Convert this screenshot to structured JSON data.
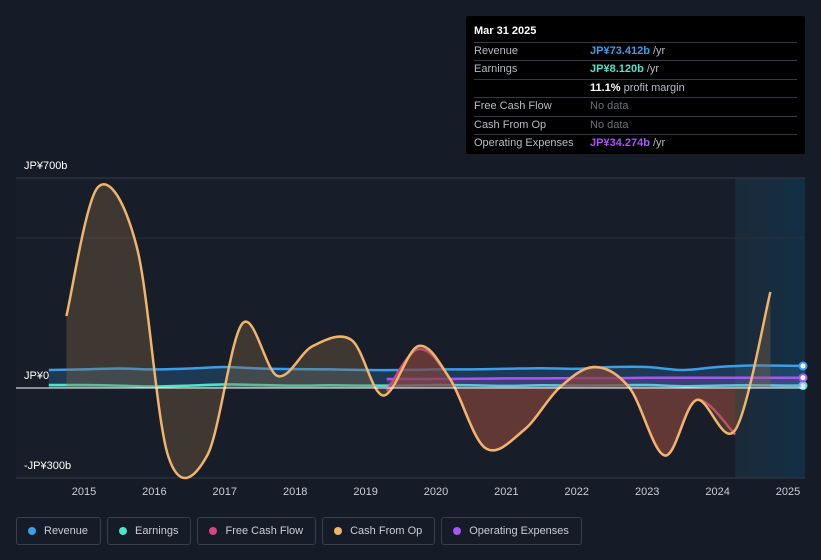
{
  "tooltip": {
    "date": "Mar 31 2025",
    "rows": [
      {
        "label": "Revenue",
        "value": "JP¥73.412b",
        "unit": "/yr",
        "color": "#3b9ee8"
      },
      {
        "label": "Earnings",
        "value": "JP¥8.120b",
        "unit": "/yr",
        "color": "#4fe3c7"
      },
      {
        "label": "",
        "value": "11.1%",
        "unit": "profit margin",
        "color": "#ffffff"
      },
      {
        "label": "Free Cash Flow",
        "value": "No data",
        "unit": "",
        "color": "#6b717b"
      },
      {
        "label": "Cash From Op",
        "value": "No data",
        "unit": "",
        "color": "#6b717b"
      },
      {
        "label": "Operating Expenses",
        "value": "JP¥34.274b",
        "unit": "/yr",
        "color": "#a855f7"
      }
    ]
  },
  "legend": [
    {
      "label": "Revenue",
      "color": "#3b9ee8"
    },
    {
      "label": "Earnings",
      "color": "#4fe3c7"
    },
    {
      "label": "Free Cash Flow",
      "color": "#d6457f"
    },
    {
      "label": "Cash From Op",
      "color": "#f0b46a"
    },
    {
      "label": "Operating Expenses",
      "color": "#a855f7"
    }
  ],
  "chart_data": {
    "type": "line",
    "ylim": [
      -300,
      700
    ],
    "y_tick_labels": [
      "JP¥700b",
      "JP¥0",
      "-JP¥300b"
    ],
    "x_tick_labels": [
      "2015",
      "2016",
      "2017",
      "2018",
      "2019",
      "2020",
      "2021",
      "2022",
      "2023",
      "2024",
      "2025"
    ],
    "grid": true,
    "legend_position": "bottom",
    "forecast_shading_start": 2024.25,
    "series": [
      {
        "name": "Revenue",
        "color": "#3b9ee8",
        "area": true,
        "points": [
          [
            2014.5,
            60
          ],
          [
            2015,
            62
          ],
          [
            2015.5,
            65
          ],
          [
            2016,
            62
          ],
          [
            2016.5,
            65
          ],
          [
            2017,
            70
          ],
          [
            2017.5,
            65
          ],
          [
            2018,
            63
          ],
          [
            2018.5,
            62
          ],
          [
            2019,
            60
          ],
          [
            2019.5,
            60
          ],
          [
            2020,
            62
          ],
          [
            2020.5,
            62
          ],
          [
            2021,
            64
          ],
          [
            2021.5,
            66
          ],
          [
            2022,
            64
          ],
          [
            2022.5,
            70
          ],
          [
            2023,
            70
          ],
          [
            2023.5,
            60
          ],
          [
            2024,
            70
          ],
          [
            2024.5,
            75
          ],
          [
            2025,
            74
          ],
          [
            2025.25,
            73.4
          ]
        ]
      },
      {
        "name": "Earnings",
        "color": "#4fe3c7",
        "area": true,
        "points": [
          [
            2014.5,
            10
          ],
          [
            2015,
            10
          ],
          [
            2015.5,
            8
          ],
          [
            2016,
            5
          ],
          [
            2016.5,
            8
          ],
          [
            2017,
            12
          ],
          [
            2017.5,
            10
          ],
          [
            2018,
            8
          ],
          [
            2018.5,
            9
          ],
          [
            2019,
            8
          ],
          [
            2019.5,
            8
          ],
          [
            2020,
            10
          ],
          [
            2020.5,
            9
          ],
          [
            2021,
            7
          ],
          [
            2021.5,
            9
          ],
          [
            2022,
            8
          ],
          [
            2022.5,
            9
          ],
          [
            2023,
            10
          ],
          [
            2023.5,
            6
          ],
          [
            2024,
            8
          ],
          [
            2024.5,
            9
          ],
          [
            2025,
            8
          ],
          [
            2025.25,
            8.1
          ]
        ]
      },
      {
        "name": "Operating Expenses",
        "color": "#a855f7",
        "area": true,
        "points": [
          [
            2019.3,
            30
          ],
          [
            2019.8,
            30
          ],
          [
            2020.5,
            31
          ],
          [
            2021,
            32
          ],
          [
            2021.5,
            32
          ],
          [
            2022,
            33
          ],
          [
            2022.5,
            33
          ],
          [
            2023,
            34
          ],
          [
            2023.5,
            34
          ],
          [
            2024,
            34
          ],
          [
            2024.5,
            34
          ],
          [
            2025,
            34.2
          ],
          [
            2025.25,
            34.3
          ]
        ]
      },
      {
        "name": "Free Cash Flow",
        "color": "#d6457f",
        "area": false,
        "points": [
          [
            2019.3,
            -10
          ],
          [
            2019.75,
            130
          ],
          [
            2020.2,
            30
          ],
          [
            2020.7,
            -200
          ],
          [
            2021.25,
            -140
          ],
          [
            2021.75,
            0
          ],
          [
            2022.25,
            70
          ],
          [
            2022.75,
            0
          ],
          [
            2023.25,
            -225
          ],
          [
            2023.7,
            -40
          ],
          [
            2024.25,
            -155
          ]
        ]
      },
      {
        "name": "Cash From Op",
        "color": "#f0b46a",
        "area": true,
        "points": [
          [
            2014.75,
            240
          ],
          [
            2015.2,
            670
          ],
          [
            2015.75,
            470
          ],
          [
            2016.2,
            -230
          ],
          [
            2016.75,
            -225
          ],
          [
            2017.25,
            215
          ],
          [
            2017.75,
            40
          ],
          [
            2018.25,
            140
          ],
          [
            2018.8,
            160
          ],
          [
            2019.25,
            -25
          ],
          [
            2019.75,
            140
          ],
          [
            2020.2,
            30
          ],
          [
            2020.7,
            -200
          ],
          [
            2021.25,
            -140
          ],
          [
            2021.75,
            0
          ],
          [
            2022.25,
            70
          ],
          [
            2022.75,
            0
          ],
          [
            2023.25,
            -225
          ],
          [
            2023.7,
            -40
          ],
          [
            2024.25,
            -140
          ],
          [
            2024.75,
            320
          ]
        ]
      }
    ]
  }
}
